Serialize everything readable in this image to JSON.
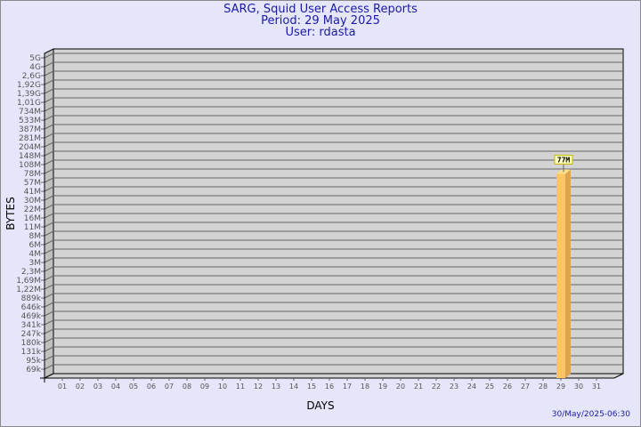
{
  "header": {
    "title": "SARG, Squid User Access Reports",
    "period": "Period: 29 May 2025",
    "user": "User: rdasta"
  },
  "footer": {
    "timestamp": "30/May/2025-06:30"
  },
  "colors": {
    "background": "#e6e6fa",
    "plot": "#d3d3d3",
    "bar": "#ffc466",
    "bar_side": "#e0a44c",
    "title": "#1a1aa6"
  },
  "chart_data": {
    "type": "bar",
    "xlabel": "DAYS",
    "ylabel": "BYTES",
    "y_scale": "log",
    "y_ticks": [
      "5G",
      "4G",
      "2,6G",
      "1,92G",
      "1,39G",
      "1,01G",
      "734M",
      "533M",
      "387M",
      "281M",
      "204M",
      "148M",
      "108M",
      "78M",
      "57M",
      "41M",
      "30M",
      "22M",
      "16M",
      "11M",
      "8M",
      "6M",
      "4M",
      "3M",
      "2,3M",
      "1,69M",
      "1,22M",
      "889k",
      "646k",
      "469k",
      "341k",
      "247k",
      "180k",
      "131k",
      "95k",
      "69k"
    ],
    "categories": [
      "01",
      "02",
      "03",
      "04",
      "05",
      "06",
      "07",
      "08",
      "09",
      "10",
      "11",
      "12",
      "13",
      "14",
      "15",
      "16",
      "17",
      "18",
      "19",
      "20",
      "21",
      "22",
      "23",
      "24",
      "25",
      "26",
      "27",
      "28",
      "29",
      "30",
      "31"
    ],
    "bars": [
      {
        "day": "29",
        "value": "77M"
      }
    ],
    "grid": true
  }
}
